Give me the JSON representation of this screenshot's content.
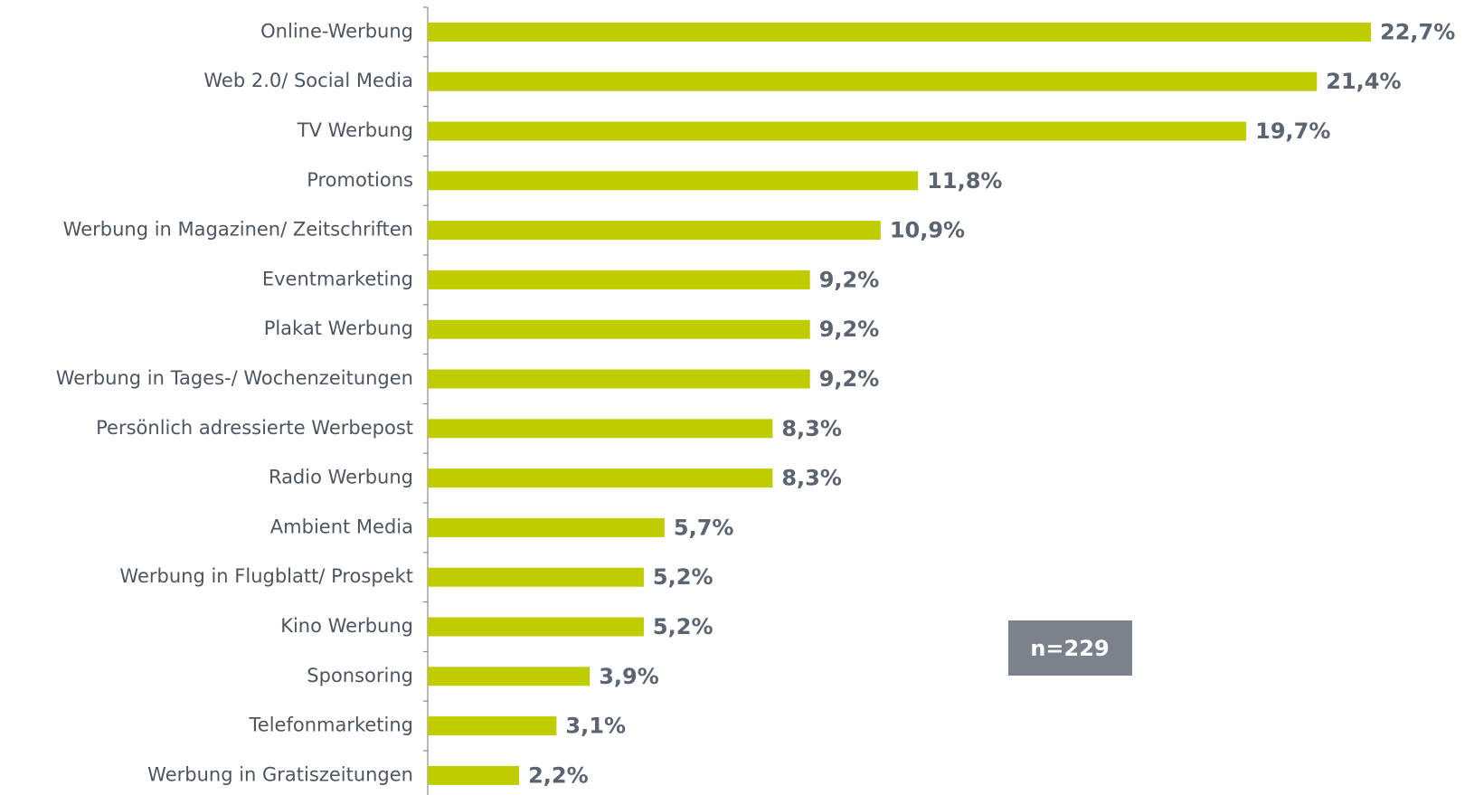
{
  "chart_data": {
    "type": "bar",
    "orientation": "horizontal",
    "categories": [
      "Online-Werbung",
      "Web 2.0/ Social Media",
      "TV Werbung",
      "Promotions",
      "Werbung in Magazinen/ Zeitschriften",
      "Eventmarketing",
      "Plakat Werbung",
      "Werbung in Tages-/ Wochenzeitungen",
      "Persönlich adressierte Werbepost",
      "Radio Werbung",
      "Ambient Media",
      "Werbung in Flugblatt/ Prospekt",
      "Kino Werbung",
      "Sponsoring",
      "Telefonmarketing",
      "Werbung in Gratiszeitungen"
    ],
    "values": [
      22.7,
      21.4,
      19.7,
      11.8,
      10.9,
      9.2,
      9.2,
      9.2,
      8.3,
      8.3,
      5.7,
      5.2,
      5.2,
      3.9,
      3.1,
      2.2
    ],
    "value_labels": [
      "22,7%",
      "21,4%",
      "19,7%",
      "11,8%",
      "10,9%",
      "9,2%",
      "9,2%",
      "9,2%",
      "8,3%",
      "8,3%",
      "5,7%",
      "5,2%",
      "5,2%",
      "3,9%",
      "3,1%",
      "2,2%"
    ],
    "color": "#bfcd00",
    "annotation": "n=229"
  }
}
